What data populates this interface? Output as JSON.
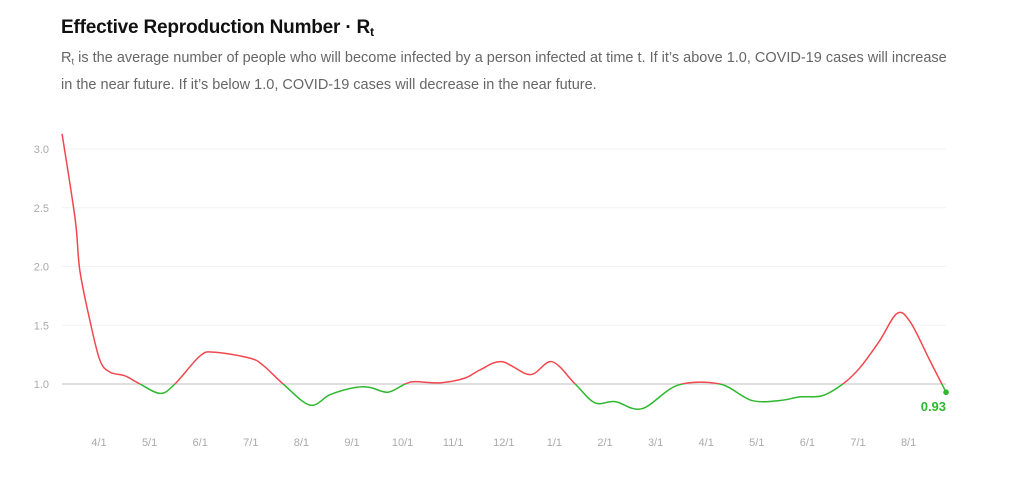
{
  "header": {
    "title": "Effective Reproduction Number · R",
    "title_sub": "t",
    "desc_r": "R",
    "desc_sub": "t",
    "description": " is the average number of people who will become infected by a person infected at time t. If it’s above 1.0, COVID-19 cases will increase in the near future. If it’s below 1.0, COVID-19 cases will decrease in the near future."
  },
  "chart_data": {
    "type": "line",
    "title": "Effective Reproduction Number · Rt",
    "xlabel": "",
    "ylabel": "",
    "x_units": "months since 4/1",
    "ylim": [
      0.7,
      3.1
    ],
    "xlim": [
      -0.73,
      16.74
    ],
    "yticks": [
      1.0,
      1.5,
      2.0,
      2.5,
      3.0
    ],
    "ytick_labels": [
      "1.0",
      "1.5",
      "2.0",
      "2.5",
      "3.0"
    ],
    "xticks": [
      0,
      1,
      2,
      3,
      4,
      5,
      6,
      7,
      8,
      9,
      10,
      11,
      12,
      13,
      14,
      15,
      16
    ],
    "xtick_labels": [
      "4/1",
      "5/1",
      "6/1",
      "7/1",
      "8/1",
      "9/1",
      "10/1",
      "11/1",
      "12/1",
      "1/1",
      "2/1",
      "3/1",
      "4/1",
      "5/1",
      "6/1",
      "7/1",
      "8/1"
    ],
    "threshold": 1.0,
    "colors": {
      "above": "#f0484e",
      "below": "#2eb82e",
      "threshold_line": "#cccccc",
      "grid": "#f3f3f3"
    },
    "x": [
      -0.73,
      -0.47,
      -0.38,
      -0.18,
      0.02,
      0.22,
      0.51,
      0.81,
      1.21,
      1.5,
      2.0,
      2.29,
      2.98,
      3.24,
      3.64,
      4.17,
      4.57,
      5.06,
      5.36,
      5.71,
      6.05,
      6.25,
      6.74,
      7.23,
      7.53,
      7.96,
      8.52,
      8.95,
      9.41,
      9.8,
      10.2,
      10.73,
      11.44,
      12.27,
      12.9,
      13.46,
      13.85,
      14.29,
      14.7,
      15.04,
      15.43,
      15.77,
      16.03,
      16.42,
      16.74
    ],
    "y": [
      3.13,
      2.4,
      1.97,
      1.54,
      1.2,
      1.1,
      1.07,
      1.0,
      0.92,
      1.0,
      1.24,
      1.27,
      1.22,
      1.16,
      1.0,
      0.82,
      0.91,
      0.97,
      0.97,
      0.93,
      1.0,
      1.02,
      1.01,
      1.05,
      1.12,
      1.19,
      1.08,
      1.19,
      1.0,
      0.84,
      0.85,
      0.79,
      0.99,
      1.0,
      0.86,
      0.86,
      0.89,
      0.9,
      1.0,
      1.14,
      1.37,
      1.6,
      1.53,
      1.2,
      0.93
    ],
    "last_value_label": "0.93",
    "grid": true,
    "legend": "none"
  }
}
